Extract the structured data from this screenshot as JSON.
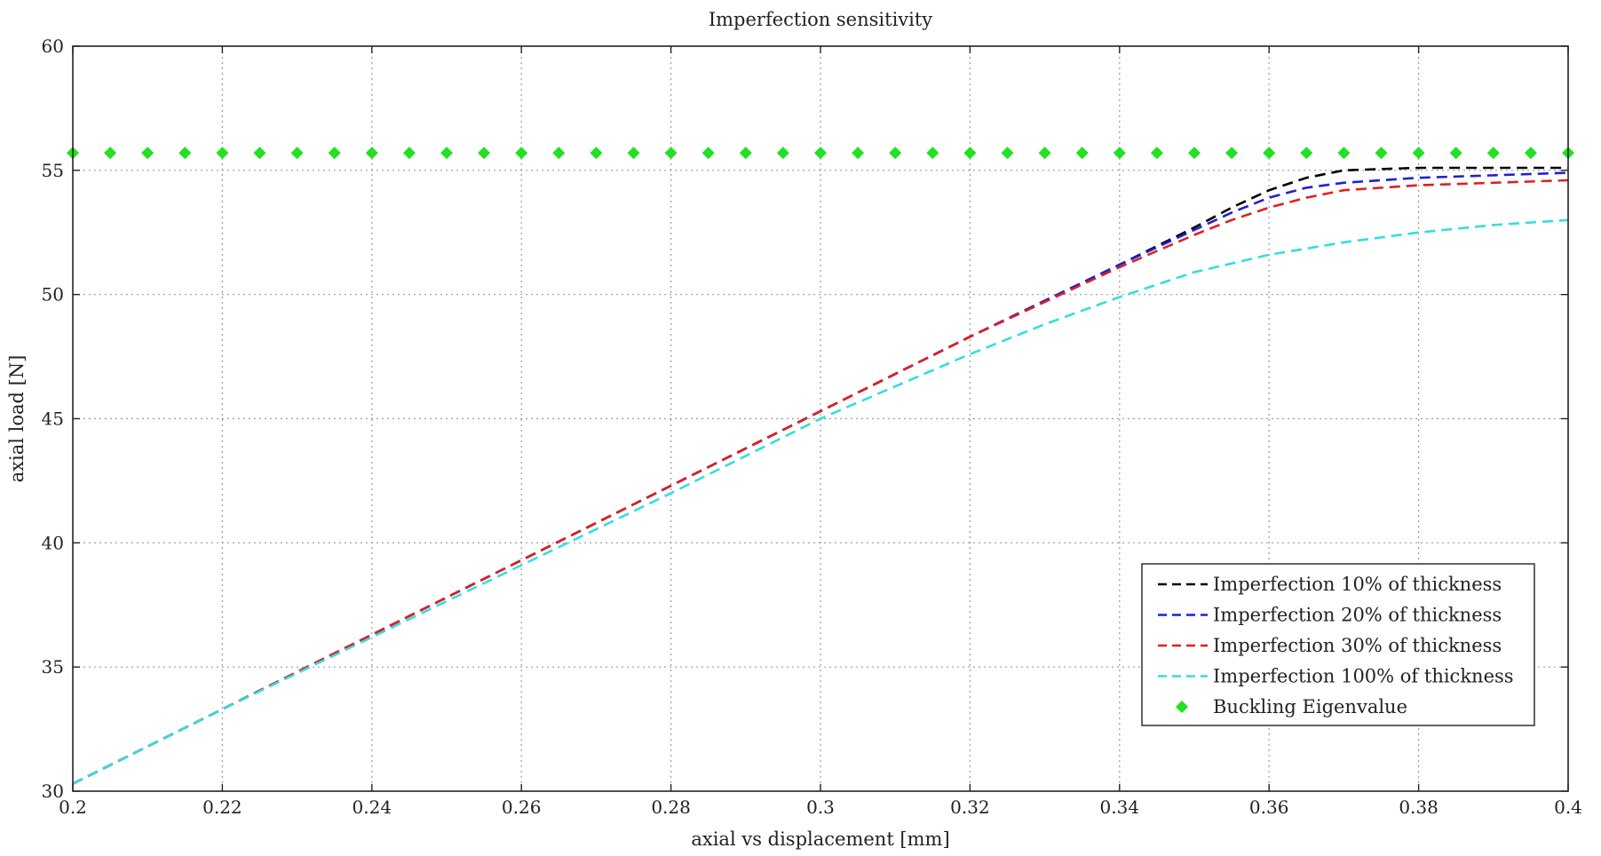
{
  "chart_data": {
    "type": "line",
    "title": "Imperfection sensitivity",
    "xlabel": "axial vs displacement [mm]",
    "ylabel": "axial load [N]",
    "xlim": [
      0.2,
      0.4
    ],
    "ylim": [
      30,
      60
    ],
    "xticks": [
      0.2,
      0.22,
      0.24,
      0.26,
      0.28,
      0.3,
      0.32,
      0.34,
      0.36,
      0.38,
      0.4
    ],
    "yticks": [
      30,
      35,
      40,
      45,
      50,
      55,
      60
    ],
    "xtick_labels": [
      "0.2",
      "0.22",
      "0.24",
      "0.26",
      "0.28",
      "0.3",
      "0.32",
      "0.34",
      "0.36",
      "0.38",
      "0.4"
    ],
    "ytick_labels": [
      "30",
      "35",
      "40",
      "45",
      "50",
      "55",
      "60"
    ],
    "grid": true,
    "legend_position": "bottom-right",
    "series": [
      {
        "name": "Imperfection 10% of thickness",
        "color": "#000000",
        "style": "dashed",
        "x": [
          0.2,
          0.22,
          0.24,
          0.26,
          0.28,
          0.3,
          0.32,
          0.34,
          0.35,
          0.355,
          0.36,
          0.365,
          0.37,
          0.38,
          0.39,
          0.4
        ],
        "y": [
          30.3,
          33.3,
          36.3,
          39.3,
          42.3,
          45.3,
          48.3,
          51.2,
          52.7,
          53.5,
          54.2,
          54.7,
          55.0,
          55.1,
          55.1,
          55.1
        ]
      },
      {
        "name": "Imperfection 20% of thickness",
        "color": "#1f1fd6",
        "style": "dashed",
        "x": [
          0.2,
          0.22,
          0.24,
          0.26,
          0.28,
          0.3,
          0.32,
          0.34,
          0.35,
          0.355,
          0.36,
          0.365,
          0.37,
          0.38,
          0.39,
          0.4
        ],
        "y": [
          30.3,
          33.3,
          36.3,
          39.3,
          42.3,
          45.3,
          48.3,
          51.2,
          52.6,
          53.3,
          53.9,
          54.3,
          54.5,
          54.7,
          54.8,
          54.9
        ]
      },
      {
        "name": "Imperfection 30% of thickness",
        "color": "#e02020",
        "style": "dashed",
        "x": [
          0.2,
          0.22,
          0.24,
          0.26,
          0.28,
          0.3,
          0.32,
          0.34,
          0.35,
          0.355,
          0.36,
          0.365,
          0.37,
          0.38,
          0.39,
          0.4
        ],
        "y": [
          30.3,
          33.3,
          36.3,
          39.3,
          42.3,
          45.3,
          48.3,
          51.1,
          52.4,
          53.0,
          53.5,
          53.9,
          54.2,
          54.4,
          54.5,
          54.6
        ]
      },
      {
        "name": "Imperfection 100% of thickness",
        "color": "#33dede",
        "style": "dashed",
        "x": [
          0.2,
          0.22,
          0.24,
          0.26,
          0.28,
          0.3,
          0.31,
          0.32,
          0.33,
          0.34,
          0.35,
          0.36,
          0.37,
          0.38,
          0.39,
          0.4
        ],
        "y": [
          30.3,
          33.3,
          36.2,
          39.1,
          42.0,
          45.0,
          46.3,
          47.6,
          48.8,
          49.9,
          50.9,
          51.6,
          52.1,
          52.5,
          52.8,
          53.0
        ]
      },
      {
        "name": "Buckling Eigenvalue",
        "color": "#22e022",
        "style": "markers",
        "x": [
          0.2,
          0.205,
          0.21,
          0.215,
          0.22,
          0.225,
          0.23,
          0.235,
          0.24,
          0.245,
          0.25,
          0.255,
          0.26,
          0.265,
          0.27,
          0.275,
          0.28,
          0.285,
          0.29,
          0.295,
          0.3,
          0.305,
          0.31,
          0.315,
          0.32,
          0.325,
          0.33,
          0.335,
          0.34,
          0.345,
          0.35,
          0.355,
          0.36,
          0.365,
          0.37,
          0.375,
          0.38,
          0.385,
          0.39,
          0.395,
          0.4
        ],
        "y": [
          55.7,
          55.7,
          55.7,
          55.7,
          55.7,
          55.7,
          55.7,
          55.7,
          55.7,
          55.7,
          55.7,
          55.7,
          55.7,
          55.7,
          55.7,
          55.7,
          55.7,
          55.7,
          55.7,
          55.7,
          55.7,
          55.7,
          55.7,
          55.7,
          55.7,
          55.7,
          55.7,
          55.7,
          55.7,
          55.7,
          55.7,
          55.7,
          55.7,
          55.7,
          55.7,
          55.7,
          55.7,
          55.7,
          55.7,
          55.7,
          55.7
        ]
      }
    ]
  }
}
